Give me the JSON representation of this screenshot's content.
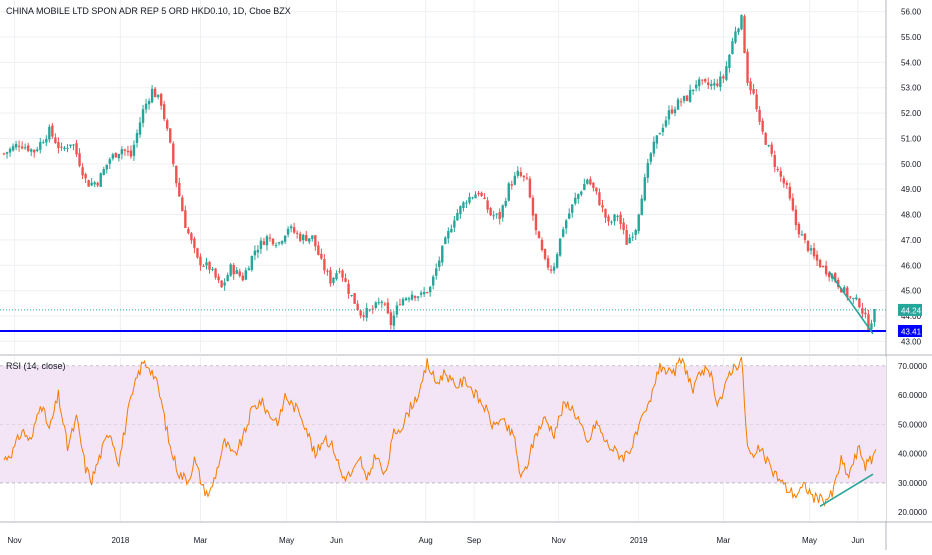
{
  "title": "CHINA MOBILE LTD SPON ADR REP 5 ORD HKD0.10, 1D, Cboe BZX",
  "rsi_title": "RSI (14, close)",
  "colors": {
    "up": "#26a69a",
    "down": "#ef5350",
    "support": "#0000ff",
    "trendline": "#26a69a",
    "rsi_line": "#f57c00",
    "rsi_band": "#f3e5f5",
    "grid": "#eef0f3",
    "last_price_bg": "#26a69a",
    "support_label_bg": "#0000ff"
  },
  "chart_data": [
    {
      "type": "candlestick",
      "name": "price",
      "ylim": [
        42.7,
        56.3
      ],
      "y_ticks": [
        "56.00",
        "55.00",
        "54.00",
        "53.00",
        "52.00",
        "51.00",
        "50.00",
        "49.00",
        "48.00",
        "47.00",
        "46.00",
        "45.00",
        "44.00",
        "43.00"
      ],
      "y_tick_values": [
        56,
        55,
        54,
        53,
        52,
        51,
        50,
        49,
        48,
        47,
        46,
        45,
        44,
        43
      ],
      "x_ticks": [
        "Nov",
        "2018",
        "Mar",
        "May",
        "Jun",
        "Aug",
        "Sep",
        "Nov",
        "2019",
        "Mar",
        "May",
        "Jun"
      ],
      "x_tick_days": [
        7,
        77,
        130,
        187,
        220,
        279,
        311,
        367,
        420,
        476,
        533,
        565
      ],
      "last_price": 44.24,
      "last_price_label": "44.24",
      "support_level": 43.41,
      "support_label": "43.41",
      "trendline": {
        "from": {
          "day": 546,
          "value": 45.75
        },
        "to": {
          "day": 575,
          "value": 43.3
        }
      },
      "close_anchors": [
        [
          0,
          50.4
        ],
        [
          10,
          50.8
        ],
        [
          20,
          50.5
        ],
        [
          30,
          51.3
        ],
        [
          38,
          50.5
        ],
        [
          45,
          50.9
        ],
        [
          55,
          49.2
        ],
        [
          62,
          49.3
        ],
        [
          70,
          50.2
        ],
        [
          78,
          50.6
        ],
        [
          84,
          50.3
        ],
        [
          92,
          52.1
        ],
        [
          98,
          52.9
        ],
        [
          104,
          52.4
        ],
        [
          110,
          50.7
        ],
        [
          114,
          49.3
        ],
        [
          120,
          47.6
        ],
        [
          128,
          46.2
        ],
        [
          136,
          45.9
        ],
        [
          144,
          45.1
        ],
        [
          150,
          45.9
        ],
        [
          158,
          45.5
        ],
        [
          166,
          46.6
        ],
        [
          174,
          47.1
        ],
        [
          182,
          46.9
        ],
        [
          188,
          47.5
        ],
        [
          196,
          47.1
        ],
        [
          204,
          47.1
        ],
        [
          210,
          46.1
        ],
        [
          216,
          45.4
        ],
        [
          222,
          45.9
        ],
        [
          228,
          45.0
        ],
        [
          236,
          44.1
        ],
        [
          243,
          44.2
        ],
        [
          250,
          44.6
        ],
        [
          256,
          43.7
        ],
        [
          262,
          44.6
        ],
        [
          270,
          44.9
        ],
        [
          276,
          44.8
        ],
        [
          282,
          45.1
        ],
        [
          290,
          46.6
        ],
        [
          298,
          47.9
        ],
        [
          306,
          48.6
        ],
        [
          314,
          48.9
        ],
        [
          322,
          48.0
        ],
        [
          328,
          47.9
        ],
        [
          334,
          49.1
        ],
        [
          340,
          49.6
        ],
        [
          346,
          49.3
        ],
        [
          352,
          47.3
        ],
        [
          358,
          46.1
        ],
        [
          363,
          45.8
        ],
        [
          370,
          47.5
        ],
        [
          378,
          48.6
        ],
        [
          386,
          49.4
        ],
        [
          392,
          48.8
        ],
        [
          400,
          47.6
        ],
        [
          406,
          48.0
        ],
        [
          412,
          46.9
        ],
        [
          418,
          47.5
        ],
        [
          422,
          48.8
        ],
        [
          428,
          50.4
        ],
        [
          434,
          51.3
        ],
        [
          440,
          52.0
        ],
        [
          446,
          52.4
        ],
        [
          452,
          52.6
        ],
        [
          458,
          53.2
        ],
        [
          464,
          53.1
        ],
        [
          470,
          53.1
        ],
        [
          476,
          53.4
        ],
        [
          480,
          54.3
        ],
        [
          484,
          55.3
        ],
        [
          488,
          55.7
        ],
        [
          492,
          53.3
        ],
        [
          496,
          52.7
        ],
        [
          500,
          51.5
        ],
        [
          506,
          50.6
        ],
        [
          512,
          49.7
        ],
        [
          518,
          49.0
        ],
        [
          524,
          47.6
        ],
        [
          530,
          46.9
        ],
        [
          536,
          46.3
        ],
        [
          542,
          45.9
        ],
        [
          548,
          45.6
        ],
        [
          554,
          45.1
        ],
        [
          560,
          44.7
        ],
        [
          566,
          44.5
        ],
        [
          572,
          43.6
        ],
        [
          577,
          44.24
        ]
      ]
    },
    {
      "type": "line",
      "name": "RSI (14, close)",
      "ylim": [
        17,
        73
      ],
      "y_ticks": [
        "70.0000",
        "60.0000",
        "50.0000",
        "40.0000",
        "30.0000",
        "20.0000"
      ],
      "y_tick_values": [
        70,
        60,
        50,
        40,
        30,
        20
      ],
      "band": [
        30,
        70
      ],
      "trendline": {
        "from": {
          "day": 540,
          "value": 22
        },
        "to": {
          "day": 575,
          "value": 33
        }
      },
      "rsi_anchors": [
        [
          0,
          38
        ],
        [
          6,
          41
        ],
        [
          12,
          48
        ],
        [
          18,
          44
        ],
        [
          24,
          58
        ],
        [
          30,
          48
        ],
        [
          36,
          60
        ],
        [
          42,
          42
        ],
        [
          48,
          52
        ],
        [
          54,
          35
        ],
        [
          58,
          31
        ],
        [
          64,
          40
        ],
        [
          70,
          48
        ],
        [
          76,
          37
        ],
        [
          82,
          54
        ],
        [
          88,
          66
        ],
        [
          92,
          71
        ],
        [
          96,
          70
        ],
        [
          100,
          66
        ],
        [
          104,
          58
        ],
        [
          110,
          42
        ],
        [
          116,
          33
        ],
        [
          122,
          31
        ],
        [
          126,
          38
        ],
        [
          132,
          28
        ],
        [
          136,
          26
        ],
        [
          140,
          33
        ],
        [
          146,
          44
        ],
        [
          152,
          39
        ],
        [
          158,
          45
        ],
        [
          164,
          55
        ],
        [
          170,
          58
        ],
        [
          176,
          53
        ],
        [
          182,
          51
        ],
        [
          186,
          60
        ],
        [
          190,
          57
        ],
        [
          196,
          54
        ],
        [
          200,
          49
        ],
        [
          206,
          39
        ],
        [
          212,
          46
        ],
        [
          218,
          42
        ],
        [
          224,
          32
        ],
        [
          230,
          33
        ],
        [
          236,
          38
        ],
        [
          240,
          30
        ],
        [
          246,
          40
        ],
        [
          252,
          32
        ],
        [
          258,
          47
        ],
        [
          264,
          50
        ],
        [
          270,
          57
        ],
        [
          276,
          62
        ],
        [
          280,
          71
        ],
        [
          286,
          64
        ],
        [
          292,
          68
        ],
        [
          298,
          63
        ],
        [
          306,
          65
        ],
        [
          312,
          60
        ],
        [
          318,
          56
        ],
        [
          324,
          49
        ],
        [
          328,
          52
        ],
        [
          334,
          48
        ],
        [
          338,
          45
        ],
        [
          342,
          31
        ],
        [
          346,
          36
        ],
        [
          352,
          47
        ],
        [
          358,
          52
        ],
        [
          364,
          47
        ],
        [
          370,
          56
        ],
        [
          374,
          57
        ],
        [
          380,
          52
        ],
        [
          386,
          43
        ],
        [
          392,
          51
        ],
        [
          398,
          44
        ],
        [
          404,
          41
        ],
        [
          410,
          39
        ],
        [
          416,
          43
        ],
        [
          422,
          51
        ],
        [
          428,
          58
        ],
        [
          432,
          68
        ],
        [
          436,
          70
        ],
        [
          442,
          66
        ],
        [
          448,
          72
        ],
        [
          452,
          68
        ],
        [
          456,
          61
        ],
        [
          462,
          69
        ],
        [
          468,
          66
        ],
        [
          472,
          58
        ],
        [
          476,
          60
        ],
        [
          480,
          68
        ],
        [
          486,
          71
        ],
        [
          488,
          73
        ],
        [
          492,
          42
        ],
        [
          496,
          38
        ],
        [
          500,
          42
        ],
        [
          506,
          36
        ],
        [
          512,
          32
        ],
        [
          518,
          28
        ],
        [
          524,
          26
        ],
        [
          530,
          29
        ],
        [
          536,
          25
        ],
        [
          542,
          24
        ],
        [
          548,
          26
        ],
        [
          554,
          38
        ],
        [
          558,
          32
        ],
        [
          562,
          37
        ],
        [
          566,
          42
        ],
        [
          570,
          36
        ],
        [
          574,
          38
        ],
        [
          577,
          42
        ]
      ]
    }
  ],
  "date_range_days": [
    0,
    577
  ]
}
